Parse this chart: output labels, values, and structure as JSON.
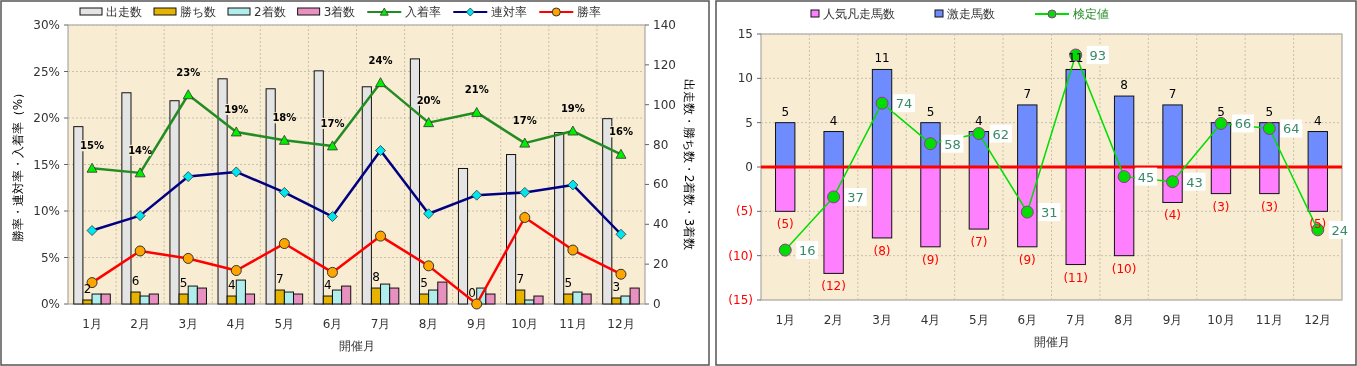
{
  "chart_data": [
    {
      "type": "bar",
      "categories": [
        "1月",
        "2月",
        "3月",
        "4月",
        "5月",
        "6月",
        "7月",
        "8月",
        "9月",
        "10月",
        "11月",
        "12月"
      ],
      "xlabel": "開催月",
      "ylabel": "勝率・連対率・入着率（%）",
      "y2label": "出走数・勝ち数・2着数・3着数",
      "ylim": [
        0,
        30
      ],
      "yticks": [
        {
          "value": 0,
          "label": "0%"
        },
        {
          "value": 5,
          "label": "5%"
        },
        {
          "value": 10,
          "label": "10%"
        },
        {
          "value": 15,
          "label": "15%"
        },
        {
          "value": 20,
          "label": "20%"
        },
        {
          "value": 25,
          "label": "25%"
        },
        {
          "value": 30,
          "label": "30%"
        }
      ],
      "y2lim": [
        0,
        140
      ],
      "y2ticks": [
        0,
        20,
        40,
        60,
        80,
        100,
        120,
        140
      ],
      "grid": true,
      "legend": "top",
      "series": [
        {
          "name": "出走数",
          "axis": "y2",
          "color": "#e4e4e4",
          "values": [
            89,
            106,
            102,
            113,
            108,
            117,
            109,
            123,
            68,
            75,
            86,
            93
          ]
        },
        {
          "name": "勝ち数",
          "axis": "y2",
          "color": "#e6b400",
          "values": [
            2,
            6,
            5,
            4,
            7,
            4,
            8,
            5,
            0,
            7,
            5,
            3
          ],
          "value_labels": [
            "2",
            "6",
            "5",
            "4",
            "7",
            "4",
            "8",
            "5",
            "0",
            "7",
            "5",
            "3"
          ]
        },
        {
          "name": "2着数",
          "axis": "y2",
          "color": "#b0eeee",
          "values": [
            5,
            4,
            9,
            12,
            6,
            7,
            10,
            7,
            8,
            2,
            6,
            4
          ]
        },
        {
          "name": "3着数",
          "axis": "y2",
          "color": "#e890c0",
          "values": [
            5,
            5,
            8,
            5,
            5,
            9,
            8,
            11,
            5,
            4,
            5,
            8
          ]
        },
        {
          "name": "入着率",
          "type": "line",
          "color": "#228b22",
          "marker": "triangle",
          "values": [
            14.6,
            14.1,
            22.5,
            18.5,
            17.6,
            17.0,
            23.8,
            19.5,
            20.6,
            17.3,
            18.6,
            16.1
          ],
          "value_labels": [
            "15%",
            "14%",
            "23%",
            "19%",
            "18%",
            "17%",
            "24%",
            "20%",
            "21%",
            "17%",
            "19%",
            "16%"
          ]
        },
        {
          "name": "連対率",
          "type": "line",
          "color": "#000080",
          "marker": "diamond",
          "values": [
            7.9,
            9.5,
            13.7,
            14.2,
            12.0,
            9.4,
            16.5,
            9.7,
            11.7,
            12.0,
            12.8,
            7.5
          ]
        },
        {
          "name": "勝率",
          "type": "line",
          "color": "#ff0000",
          "marker": "circle",
          "values": [
            2.3,
            5.7,
            4.9,
            3.6,
            6.5,
            3.4,
            7.3,
            4.1,
            0,
            9.3,
            5.8,
            3.2
          ]
        }
      ]
    },
    {
      "type": "bar",
      "stacked": true,
      "categories": [
        "1月",
        "2月",
        "3月",
        "4月",
        "5月",
        "6月",
        "7月",
        "8月",
        "9月",
        "10月",
        "11月",
        "12月"
      ],
      "xlabel": "開催月",
      "ylim": [
        -15,
        15
      ],
      "yticks": [
        {
          "value": -15,
          "label": "(15)"
        },
        {
          "value": -10,
          "label": "(10)"
        },
        {
          "value": -5,
          "label": "(5)"
        },
        0,
        5,
        10,
        15
      ],
      "y2lim": [
        -3.7,
        101.3
      ],
      "grid": true,
      "legend": "top",
      "ref_lines": [
        {
          "axis": "y",
          "value": 0,
          "color": "#ff0000"
        }
      ],
      "series": [
        {
          "name": "人気凡走馬数",
          "color": "#ff80ff",
          "values": [
            -5,
            -12,
            -8,
            -9,
            -7,
            -9,
            -11,
            -10,
            -4,
            -3,
            -3,
            -5
          ],
          "value_labels": [
            "(5)",
            "(12)",
            "(8)",
            "(9)",
            "(7)",
            "(9)",
            "(11)",
            "(10)",
            "(4)",
            "(3)",
            "(3)",
            "(5)"
          ]
        },
        {
          "name": "激走馬数",
          "color": "#6f8cff",
          "values": [
            5,
            4,
            11,
            5,
            4,
            7,
            11,
            8,
            7,
            5,
            5,
            4
          ],
          "value_labels": [
            "5",
            "4",
            "11",
            "5",
            "4",
            "7",
            "11",
            "8",
            "7",
            "5",
            "5",
            "4"
          ]
        },
        {
          "name": "検定値",
          "type": "line",
          "axis": "y2",
          "color": "#00dd00",
          "marker": "circle",
          "values": [
            16,
            37,
            74,
            58,
            62,
            31,
            93,
            45,
            43,
            66,
            64,
            24
          ],
          "value_labels": [
            "16",
            "37",
            "74",
            "58",
            "62",
            "31",
            "93",
            "45",
            "43",
            "66",
            "64",
            "24"
          ]
        }
      ]
    }
  ]
}
